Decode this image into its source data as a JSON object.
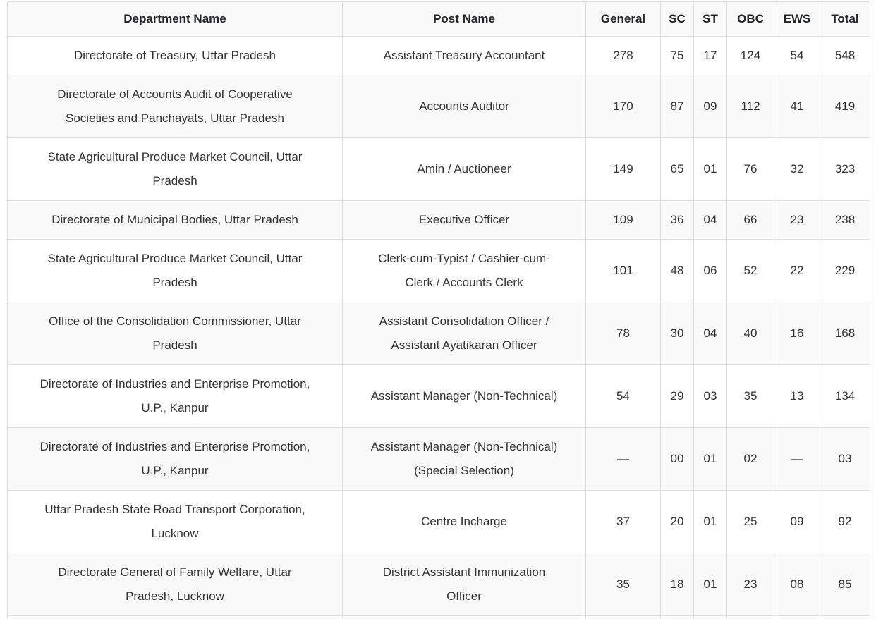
{
  "colors": {
    "background": "#ffffff",
    "header_bg": "#f9f9f9",
    "stripe_bg": "#f9f9f9",
    "border": "#dddddd",
    "text": "#333333",
    "highlight_comma": "#3e6fd0"
  },
  "table": {
    "columns": [
      {
        "key": "department",
        "label": "Department Name"
      },
      {
        "key": "post",
        "label": "Post Name"
      },
      {
        "key": "general",
        "label": "General"
      },
      {
        "key": "sc",
        "label": "SC"
      },
      {
        "key": "st",
        "label": "ST"
      },
      {
        "key": "obc",
        "label": "OBC"
      },
      {
        "key": "ews",
        "label": "EWS"
      },
      {
        "key": "total",
        "label": "Total"
      }
    ],
    "rows": [
      {
        "department": "Directorate of Treasury, Uttar Pradesh",
        "post": "Assistant Treasury Accountant",
        "general": "278",
        "sc": "75",
        "st": "17",
        "obc": "124",
        "ews": "54",
        "total": "548"
      },
      {
        "department": "Directorate of Accounts Audit of Cooperative\nSocieties and Panchayats, Uttar Pradesh",
        "post": "Accounts Auditor",
        "general": "170",
        "sc": "87",
        "st": "09",
        "obc": "112",
        "ews": "41",
        "total": "419"
      },
      {
        "department": "State Agricultural Produce Market Council, Uttar\nPradesh",
        "post": "Amin / Auctioneer",
        "general": "149",
        "sc": "65",
        "st": "01",
        "obc": "76",
        "ews": "32",
        "total": "323"
      },
      {
        "department": "Directorate of Municipal Bodies, Uttar Pradesh",
        "post": "Executive Officer",
        "general": "109",
        "sc": "36",
        "st": "04",
        "obc": "66",
        "ews": "23",
        "total": "238"
      },
      {
        "department": "State Agricultural Produce Market Council, Uttar\nPradesh",
        "post": "Clerk-cum-Typist / Cashier-cum-\nClerk / Accounts Clerk",
        "general": "101",
        "sc": "48",
        "st": "06",
        "obc": "52",
        "ews": "22",
        "total": "229"
      },
      {
        "department": "Office of the Consolidation Commissioner, Uttar\nPradesh",
        "post": "Assistant Consolidation Officer /\nAssistant Ayatikaran Officer",
        "general": "78",
        "sc": "30",
        "st": "04",
        "obc": "40",
        "ews": "16",
        "total": "168"
      },
      {
        "department": "Directorate of Industries and Enterprise Promotion,\nU.P., Kanpur",
        "department_parts": {
          "pre": "Directorate of Industries and Enterprise Promotion,\nU.P.",
          "highlight": ",",
          "tail": " Kanpur"
        },
        "post": "Assistant Manager (Non-Technical)",
        "general": "54",
        "sc": "29",
        "st": "03",
        "obc": "35",
        "ews": "13",
        "total": "134"
      },
      {
        "department": "Directorate of Industries and Enterprise Promotion,\nU.P., Kanpur",
        "post": "Assistant Manager (Non-Technical)\n(Special Selection)",
        "general": "—",
        "sc": "00",
        "st": "01",
        "obc": "02",
        "ews": "—",
        "total": "03"
      },
      {
        "department": "Uttar Pradesh State Road Transport Corporation,\nLucknow",
        "post": "Centre Incharge",
        "general": "37",
        "sc": "20",
        "st": "01",
        "obc": "25",
        "ews": "09",
        "total": "92"
      },
      {
        "department": "Directorate General of Family Welfare, Uttar\nPradesh, Lucknow",
        "post": "District Assistant Immunization\nOfficer",
        "general": "35",
        "sc": "18",
        "st": "01",
        "obc": "23",
        "ews": "08",
        "total": "85"
      }
    ]
  }
}
